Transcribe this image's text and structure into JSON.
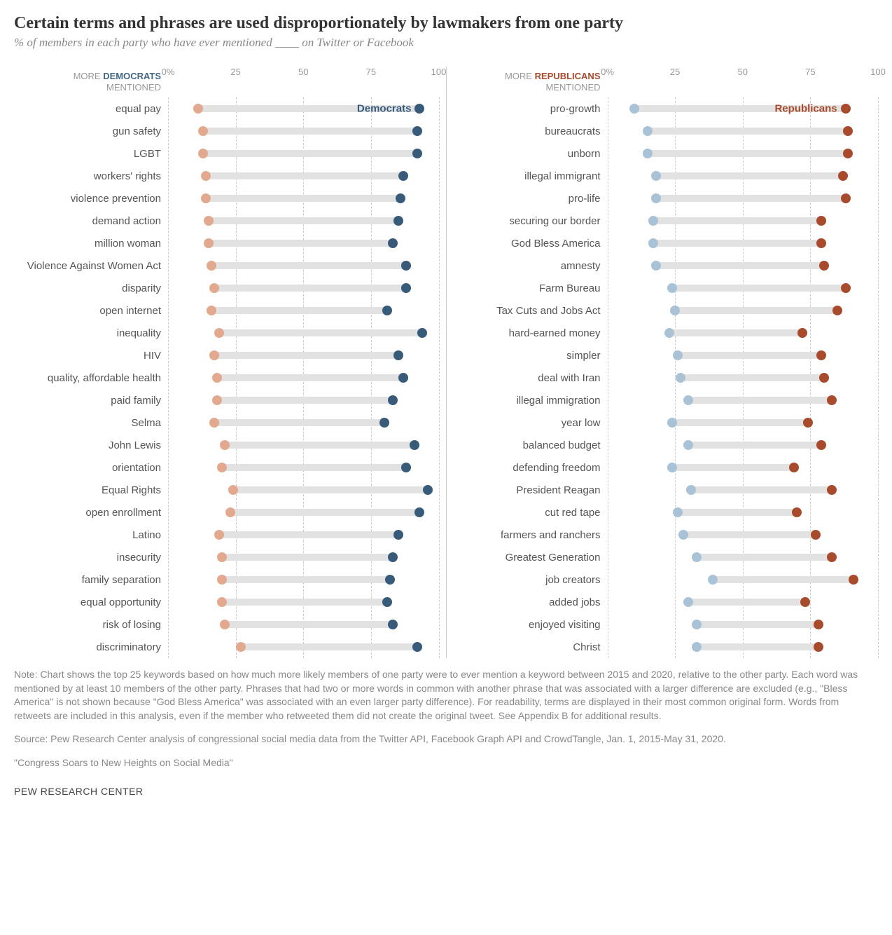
{
  "title": "Certain terms and phrases are used disproportionately by lawmakers from one party",
  "subtitle": "% of members in each party who have ever mentioned ____ on Twitter or Facebook",
  "colors": {
    "dem_dark": "#385b7a",
    "dem_light": "#a9c2d6",
    "rep_dark": "#a84b2c",
    "rep_light": "#e3a98f",
    "bar_bg": "#e2e2e2",
    "grid": "#cccccc",
    "text_muted": "#999999"
  },
  "axis": {
    "xlim": [
      0,
      100
    ],
    "ticks": [
      0,
      25,
      50,
      75,
      100
    ],
    "tick_labels": [
      "0%",
      "25",
      "50",
      "75",
      "100"
    ]
  },
  "panels": {
    "left": {
      "header_more": "MORE",
      "header_party": "DEMOCRATS",
      "header_party_class": "party-d",
      "header_mentioned": "MENTIONED",
      "series_label": "Democrats",
      "series_label_color": "#385b7a",
      "low_color_key": "rep_light",
      "high_color_key": "dem_dark",
      "rows": [
        {
          "label": "equal pay",
          "low": 11,
          "high": 93,
          "show_label": true
        },
        {
          "label": "gun safety",
          "low": 13,
          "high": 92
        },
        {
          "label": "LGBT",
          "low": 13,
          "high": 92
        },
        {
          "label": "workers' rights",
          "low": 14,
          "high": 87
        },
        {
          "label": "violence prevention",
          "low": 14,
          "high": 86
        },
        {
          "label": "demand action",
          "low": 15,
          "high": 85
        },
        {
          "label": "million woman",
          "low": 15,
          "high": 83
        },
        {
          "label": "Violence Against Women Act",
          "low": 16,
          "high": 88
        },
        {
          "label": "disparity",
          "low": 17,
          "high": 88
        },
        {
          "label": "open internet",
          "low": 16,
          "high": 81
        },
        {
          "label": "inequality",
          "low": 19,
          "high": 94
        },
        {
          "label": "HIV",
          "low": 17,
          "high": 85
        },
        {
          "label": "quality, affordable health",
          "low": 18,
          "high": 87
        },
        {
          "label": "paid family",
          "low": 18,
          "high": 83
        },
        {
          "label": "Selma",
          "low": 17,
          "high": 80
        },
        {
          "label": "John Lewis",
          "low": 21,
          "high": 91
        },
        {
          "label": "orientation",
          "low": 20,
          "high": 88
        },
        {
          "label": "Equal Rights",
          "low": 24,
          "high": 96
        },
        {
          "label": "open enrollment",
          "low": 23,
          "high": 93
        },
        {
          "label": "Latino",
          "low": 19,
          "high": 85
        },
        {
          "label": "insecurity",
          "low": 20,
          "high": 83
        },
        {
          "label": "family separation",
          "low": 20,
          "high": 82
        },
        {
          "label": "equal opportunity",
          "low": 20,
          "high": 81
        },
        {
          "label": "risk of losing",
          "low": 21,
          "high": 83
        },
        {
          "label": "discriminatory",
          "low": 27,
          "high": 92
        }
      ]
    },
    "right": {
      "header_more": "MORE",
      "header_party": "REPUBLICANS",
      "header_party_class": "party-r",
      "header_mentioned": "MENTIONED",
      "series_label": "Republicans",
      "series_label_color": "#a84b2c",
      "low_color_key": "dem_light",
      "high_color_key": "rep_dark",
      "rows": [
        {
          "label": "pro-growth",
          "low": 10,
          "high": 88,
          "show_label": true
        },
        {
          "label": "bureaucrats",
          "low": 15,
          "high": 89
        },
        {
          "label": "unborn",
          "low": 15,
          "high": 89
        },
        {
          "label": "illegal immigrant",
          "low": 18,
          "high": 87
        },
        {
          "label": "pro-life",
          "low": 18,
          "high": 88
        },
        {
          "label": "securing our border",
          "low": 17,
          "high": 79
        },
        {
          "label": "God Bless America",
          "low": 17,
          "high": 79
        },
        {
          "label": "amnesty",
          "low": 18,
          "high": 80
        },
        {
          "label": "Farm Bureau",
          "low": 24,
          "high": 88
        },
        {
          "label": "Tax Cuts and Jobs Act",
          "low": 25,
          "high": 85
        },
        {
          "label": "hard-earned money",
          "low": 23,
          "high": 72
        },
        {
          "label": "simpler",
          "low": 26,
          "high": 79
        },
        {
          "label": "deal with Iran",
          "low": 27,
          "high": 80
        },
        {
          "label": "illegal immigration",
          "low": 30,
          "high": 83
        },
        {
          "label": "year low",
          "low": 24,
          "high": 74
        },
        {
          "label": "balanced budget",
          "low": 30,
          "high": 79
        },
        {
          "label": "defending freedom",
          "low": 24,
          "high": 69
        },
        {
          "label": "President Reagan",
          "low": 31,
          "high": 83
        },
        {
          "label": "cut red tape",
          "low": 26,
          "high": 70
        },
        {
          "label": "farmers and ranchers",
          "low": 28,
          "high": 77
        },
        {
          "label": "Greatest Generation",
          "low": 33,
          "high": 83
        },
        {
          "label": "job creators",
          "low": 39,
          "high": 91
        },
        {
          "label": "added jobs",
          "low": 30,
          "high": 73
        },
        {
          "label": "enjoyed visiting",
          "low": 33,
          "high": 78
        },
        {
          "label": "Christ",
          "low": 33,
          "high": 78
        }
      ]
    }
  },
  "note": "Note: Chart shows the top 25 keywords based on how much more likely members of one party were to ever mention a keyword between 2015 and 2020, relative to the other party. Each word was mentioned by at least 10 members of the other party. Phrases that had two or more words in common with another phrase that was associated with a larger difference are excluded (e.g., \"Bless America\" is not shown because \"God Bless America\" was associated with an even larger party difference). For readability, terms are displayed in their most common original form. Words from retweets are included in this analysis, even if the member who retweeted them did not create the original tweet. See Appendix B for additional results.",
  "source": "Source: Pew Research Center analysis of congressional social media data from the Twitter API, Facebook Graph API and CrowdTangle, Jan. 1, 2015-May 31, 2020.",
  "quote": "\"Congress Soars to New Heights on Social Media\"",
  "brand": "PEW RESEARCH CENTER"
}
